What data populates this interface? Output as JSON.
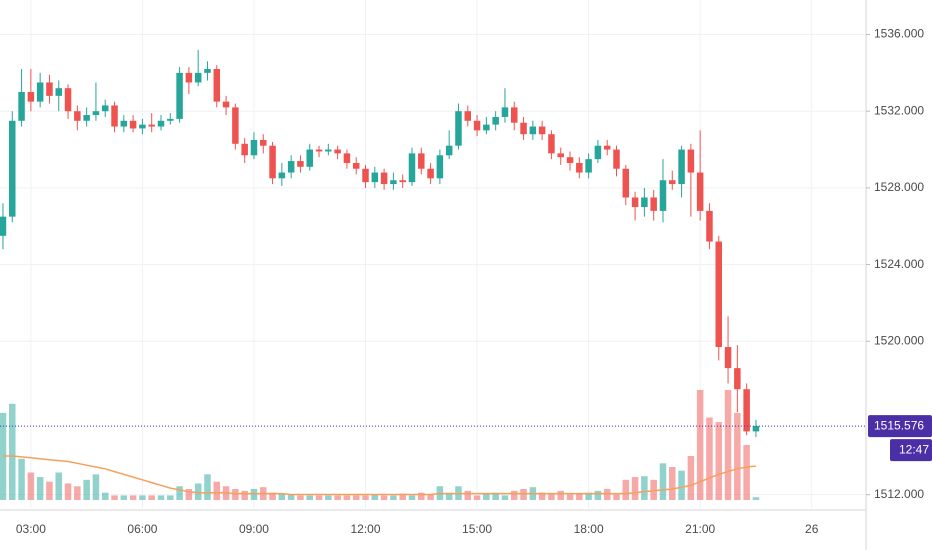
{
  "chart_data": {
    "type": "candlestick",
    "x": [
      2.25,
      2.5,
      2.75,
      3,
      3.25,
      3.5,
      3.75,
      4,
      4.25,
      4.5,
      4.75,
      5,
      5.25,
      5.5,
      5.75,
      6,
      6.25,
      6.5,
      6.75,
      7,
      7.25,
      7.5,
      7.75,
      8,
      8.25,
      8.5,
      8.75,
      9,
      9.25,
      9.5,
      9.75,
      10,
      10.25,
      10.5,
      10.75,
      11,
      11.25,
      11.5,
      11.75,
      12,
      12.25,
      12.5,
      12.75,
      13,
      13.25,
      13.5,
      13.75,
      14,
      14.25,
      14.5,
      14.75,
      15,
      15.25,
      15.5,
      15.75,
      16,
      16.25,
      16.5,
      16.75,
      17,
      17.25,
      17.5,
      17.75,
      18,
      18.25,
      18.5,
      18.75,
      19,
      19.25,
      19.5,
      19.75,
      20,
      20.25,
      20.5,
      20.75,
      21,
      21.25,
      21.5,
      21.75,
      22,
      22.25,
      22.5
    ],
    "open": [
      1525.5,
      1526.5,
      1531.5,
      1533,
      1532.5,
      1533.5,
      1532.8,
      1533.2,
      1532,
      1531.5,
      1531.8,
      1532,
      1532.3,
      1531.2,
      1531.5,
      1531.1,
      1531.3,
      1531.2,
      1531.5,
      1531.6,
      1534,
      1533.5,
      1534,
      1534.2,
      1532.5,
      1532.2,
      1530.3,
      1529.7,
      1530.5,
      1530.2,
      1528.5,
      1528.8,
      1529.4,
      1529.1,
      1530,
      1529.9,
      1530,
      1529.8,
      1529.3,
      1529,
      1528.3,
      1528.8,
      1528.2,
      1528.4,
      1528.3,
      1529.8,
      1529,
      1528.5,
      1529.7,
      1530.2,
      1532,
      1531.5,
      1531,
      1531.3,
      1531.7,
      1532.2,
      1531.4,
      1530.8,
      1531.2,
      1530.8,
      1529.8,
      1529.6,
      1529.3,
      1528.8,
      1529.5,
      1530.2,
      1530,
      1529,
      1527.5,
      1527,
      1527.5,
      1526.8,
      1528.4,
      1528.2,
      1530,
      1528.8,
      1526.8,
      1525.2,
      1519.7,
      1518.6,
      1517.5,
      1515.3
    ],
    "high": [
      1527.2,
      1532,
      1534.2,
      1534.2,
      1534,
      1533.9,
      1533.6,
      1533.4,
      1532.3,
      1532.2,
      1533.5,
      1532.6,
      1532.5,
      1531.8,
      1531.8,
      1531.6,
      1531.9,
      1531.8,
      1531.9,
      1534.3,
      1534.3,
      1535.2,
      1534.6,
      1534.4,
      1532.8,
      1532.4,
      1530.6,
      1530.9,
      1530.8,
      1530.4,
      1529.3,
      1529.7,
      1529.7,
      1530.3,
      1530.2,
      1530.3,
      1530.2,
      1530,
      1529.6,
      1529.2,
      1529.1,
      1529,
      1528.8,
      1528.7,
      1530.1,
      1530.1,
      1529.3,
      1530,
      1531,
      1532.4,
      1532.3,
      1531.8,
      1531.7,
      1532,
      1533.2,
      1532.5,
      1531.7,
      1531.5,
      1531.5,
      1531,
      1530.1,
      1529.9,
      1529.6,
      1529.8,
      1530.5,
      1530.5,
      1530.2,
      1529.2,
      1527.8,
      1528,
      1527.9,
      1529.5,
      1528.9,
      1530.2,
      1530.3,
      1531,
      1527.2,
      1525.5,
      1521.3,
      1519.8,
      1517.8,
      1515.9
    ],
    "low": [
      1524.8,
      1526.2,
      1531.2,
      1532,
      1532.2,
      1532.4,
      1532,
      1531.6,
      1531,
      1531.2,
      1531.5,
      1531.7,
      1530.9,
      1530.9,
      1530.9,
      1530.8,
      1530.9,
      1531,
      1531.3,
      1531.4,
      1532.9,
      1533.3,
      1533.6,
      1532.2,
      1531.8,
      1530,
      1529.3,
      1529.5,
      1529.8,
      1528.2,
      1528.1,
      1528.5,
      1528.8,
      1528.9,
      1529.6,
      1529.7,
      1529.5,
      1529,
      1528.7,
      1528,
      1528,
      1527.9,
      1527.9,
      1528,
      1528.1,
      1528.7,
      1528.2,
      1528.2,
      1529.5,
      1530,
      1531.2,
      1530.7,
      1530.8,
      1531,
      1531.4,
      1531,
      1530.5,
      1530.5,
      1530.5,
      1529.5,
      1529.2,
      1528.9,
      1528.5,
      1528.5,
      1529.3,
      1529.7,
      1528.6,
      1527.1,
      1526.3,
      1526.5,
      1526.3,
      1526.2,
      1527.9,
      1527.5,
      1526.5,
      1526.3,
      1524.8,
      1519,
      1517.8,
      1516.3,
      1515.1,
      1515
    ],
    "close": [
      1526.5,
      1531.5,
      1533,
      1532.5,
      1533.5,
      1532.8,
      1533.2,
      1532,
      1531.5,
      1531.8,
      1532,
      1532.3,
      1531.2,
      1531.5,
      1531.1,
      1531.3,
      1531.2,
      1531.5,
      1531.6,
      1534,
      1533.5,
      1534,
      1534.2,
      1532.5,
      1532.2,
      1530.3,
      1529.7,
      1530.5,
      1530.2,
      1528.5,
      1528.8,
      1529.4,
      1529.1,
      1530,
      1529.9,
      1530,
      1529.8,
      1529.3,
      1529,
      1528.3,
      1528.8,
      1528.2,
      1528.4,
      1528.3,
      1529.8,
      1529,
      1528.5,
      1529.7,
      1530.2,
      1532,
      1531.5,
      1531,
      1531.3,
      1531.7,
      1532.2,
      1531.4,
      1530.8,
      1531.2,
      1530.8,
      1529.8,
      1529.6,
      1529.3,
      1528.8,
      1529.5,
      1530.2,
      1530,
      1529,
      1527.5,
      1527,
      1527.5,
      1526.8,
      1528.4,
      1528.2,
      1530,
      1528.8,
      1526.8,
      1525.2,
      1519.7,
      1518.6,
      1517.5,
      1515.3,
      1515.576
    ],
    "volume": [
      95,
      105,
      45,
      30,
      25,
      20,
      30,
      18,
      15,
      22,
      28,
      8,
      5,
      5,
      5,
      5,
      5,
      5,
      5,
      15,
      12,
      18,
      28,
      20,
      15,
      12,
      10,
      12,
      14,
      8,
      7,
      6,
      5,
      5,
      5,
      5,
      5,
      5,
      5,
      5,
      6,
      5,
      5,
      7,
      5,
      8,
      6,
      15,
      8,
      15,
      10,
      5,
      7,
      8,
      5,
      10,
      12,
      14,
      8,
      7,
      10,
      6,
      7,
      8,
      10,
      12,
      6,
      22,
      25,
      26,
      22,
      40,
      36,
      32,
      48,
      120,
      90,
      85,
      120,
      95,
      60,
      3
    ],
    "volume_ma": {
      "color": "#f5a05a",
      "values": [
        48,
        48,
        47,
        46,
        45,
        44,
        43,
        42,
        40,
        38,
        36,
        34,
        31,
        28,
        25,
        22,
        19,
        16,
        13,
        11,
        9,
        8,
        8,
        8,
        8,
        7,
        7,
        7,
        7,
        7,
        7,
        6,
        6,
        6,
        6,
        6,
        6,
        6,
        6,
        6,
        6,
        6,
        6,
        6,
        6,
        6,
        6,
        7,
        7,
        7,
        7,
        7,
        7,
        7,
        7,
        7,
        7,
        7,
        7,
        7,
        7,
        7,
        7,
        7,
        7,
        7,
        7,
        7,
        8,
        9,
        10,
        11,
        12,
        14,
        16,
        20,
        24,
        28,
        31,
        34,
        36,
        37
      ]
    },
    "up_color": "#26a69a",
    "down_color": "#ef5350",
    "xlim": [
      2.17,
      25.46
    ],
    "xticks": [
      {
        "value": 3,
        "label": "03:00"
      },
      {
        "value": 6,
        "label": "06:00"
      },
      {
        "value": 9,
        "label": "09:00"
      },
      {
        "value": 12,
        "label": "12:00"
      },
      {
        "value": 15,
        "label": "15:00"
      },
      {
        "value": 18,
        "label": "18:00"
      },
      {
        "value": 21,
        "label": "21:00"
      },
      {
        "value": 24,
        "label": "26"
      }
    ],
    "ylim": [
      1511.2,
      1537.8
    ],
    "yticks": [
      {
        "value": 1512,
        "label": "1512.000"
      },
      {
        "value": 1520,
        "label": "1520.000"
      },
      {
        "value": 1524,
        "label": "1524.000"
      },
      {
        "value": 1528,
        "label": "1528.000"
      },
      {
        "value": 1532,
        "label": "1532.000"
      },
      {
        "value": 1536,
        "label": "1536.000"
      }
    ],
    "last_price": {
      "value": 1515.576,
      "label": "1515.576"
    },
    "countdown": "12:47",
    "grid": true
  }
}
